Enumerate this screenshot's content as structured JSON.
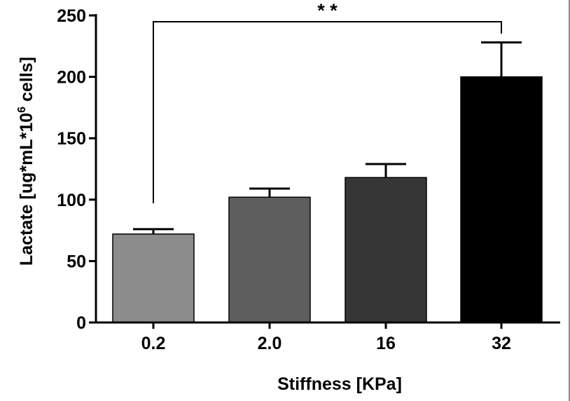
{
  "chart_data": {
    "type": "bar",
    "title": "",
    "xlabel": "Stiffness [KPa]",
    "ylabel_main": "Lactate [ug*mL*10",
    "ylabel_sup": "6",
    "ylabel_tail": " cells]",
    "categories": [
      "0.2",
      "2.0",
      "16",
      "32"
    ],
    "values": [
      72,
      102,
      118,
      200
    ],
    "errors": [
      4,
      7,
      11,
      28
    ],
    "colors": [
      "#8c8c8c",
      "#5e5e5e",
      "#363636",
      "#000000"
    ],
    "ylim": [
      0,
      250
    ],
    "yticks": [
      "0",
      "50",
      "100",
      "150",
      "200",
      "250"
    ],
    "significance": {
      "from": 0,
      "to": 3,
      "label": "* *"
    },
    "grid": false
  }
}
